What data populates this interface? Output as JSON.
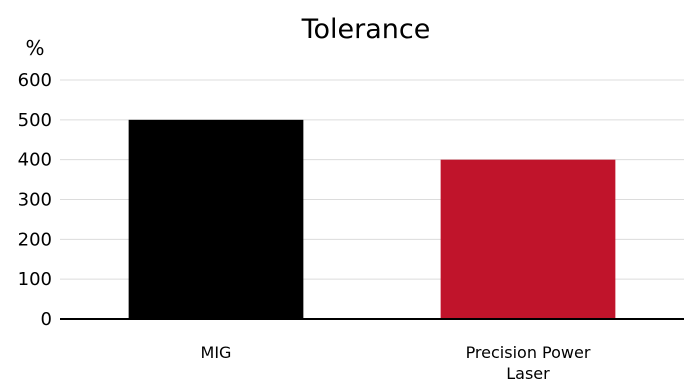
{
  "chart_data": {
    "type": "bar",
    "title": "Tolerance",
    "ylabel": "%",
    "xlabel": "",
    "categories": [
      [
        "MIG"
      ],
      [
        "Precision Power",
        "Laser"
      ]
    ],
    "values": [
      500,
      400
    ],
    "colors": [
      "#000000",
      "#c0142b"
    ],
    "ylim": [
      0,
      600
    ],
    "yticks": [
      0,
      100,
      200,
      300,
      400,
      500,
      600
    ],
    "grid": true
  }
}
